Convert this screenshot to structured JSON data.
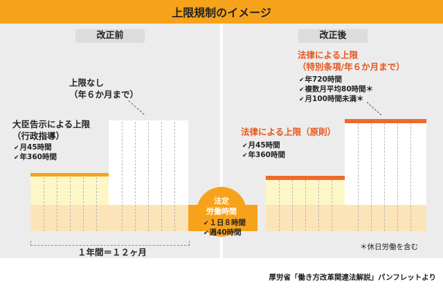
{
  "title": "上限規制のイメージ",
  "before": {
    "label": "改正前",
    "no_limit_lines": [
      "上限なし",
      "（年６か月まで）"
    ],
    "notice_lines": [
      "大臣告示による上限",
      "（行政指導）"
    ],
    "notice_items": [
      "月45時間",
      "年360時間"
    ],
    "period": "１年間＝１２ヶ月"
  },
  "after": {
    "label": "改正後",
    "special_lines": [
      "法律による上限",
      "（特別条項/年６か月まで）"
    ],
    "special_items": [
      "年720時間",
      "複数月平均80時間＊",
      "月100時間未満＊"
    ],
    "principle_title": "法律による上限（原則）",
    "principle_items": [
      "月45時間",
      "年360時間"
    ],
    "note": "＊休日労働を含む"
  },
  "center": {
    "title_lines": [
      "法定",
      "労働時間"
    ],
    "items": [
      "１日８時間",
      "週40時間"
    ]
  },
  "source": "厚労省「働き方改革関連法解説」パンフレットより",
  "colors": {
    "accent": "#f7a21b",
    "law_red": "#ef6a2a",
    "text_red": "#e9541d"
  }
}
